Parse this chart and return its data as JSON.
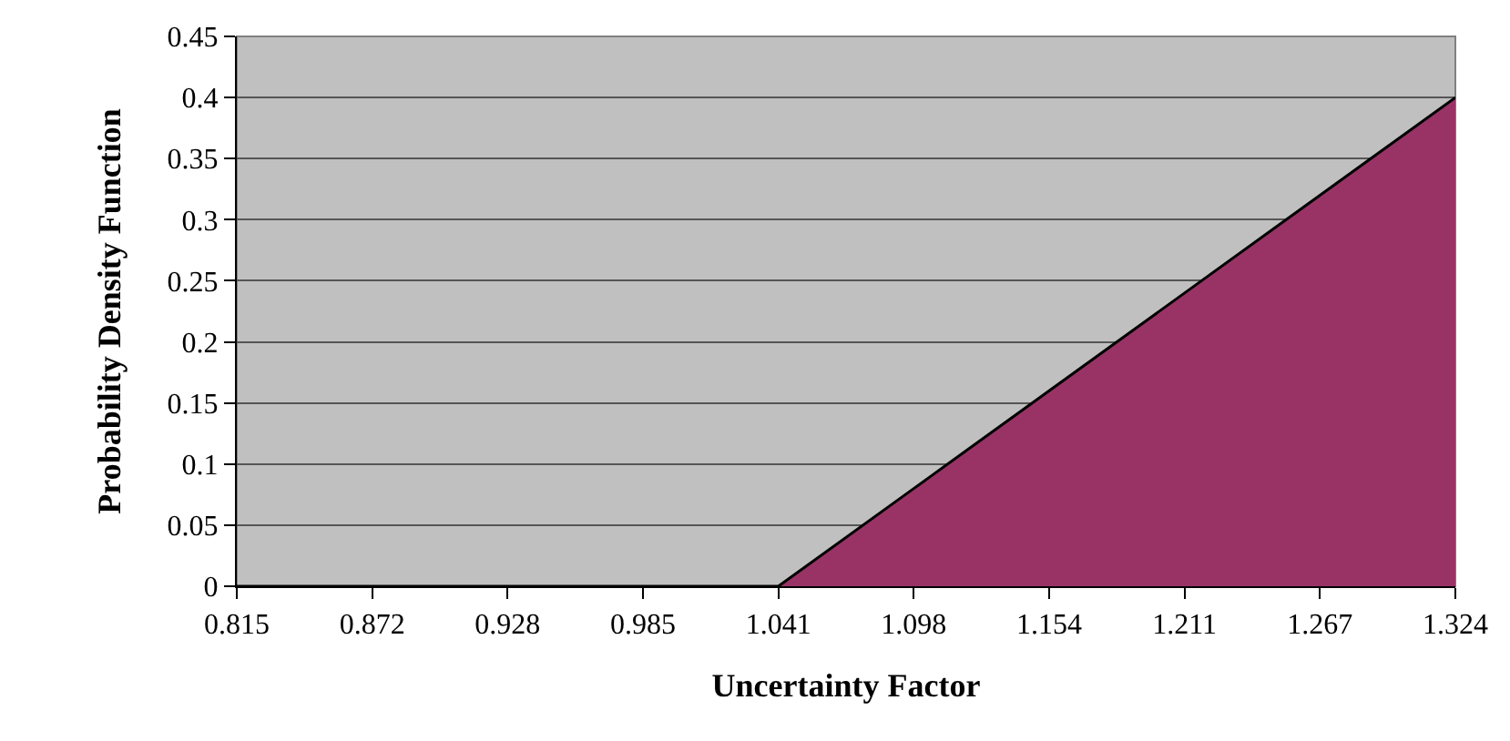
{
  "chart_data": {
    "type": "area",
    "xlabel": "Uncertainty Factor",
    "ylabel": "Probability Density Function",
    "categories": [
      "0.815",
      "0.872",
      "0.928",
      "0.985",
      "1.041",
      "1.098",
      "1.154",
      "1.211",
      "1.267",
      "1.324"
    ],
    "series": [
      {
        "color": "#993366",
        "values": [
          0,
          0,
          0,
          0,
          0,
          0.08,
          0.16,
          0.24,
          0.32,
          0.4
        ]
      }
    ],
    "ylim": [
      0,
      0.45
    ],
    "yticks": [
      0,
      0.05,
      0.1,
      0.15,
      0.2,
      0.25,
      0.3,
      0.35,
      0.4,
      0.45
    ],
    "grid": "y"
  }
}
